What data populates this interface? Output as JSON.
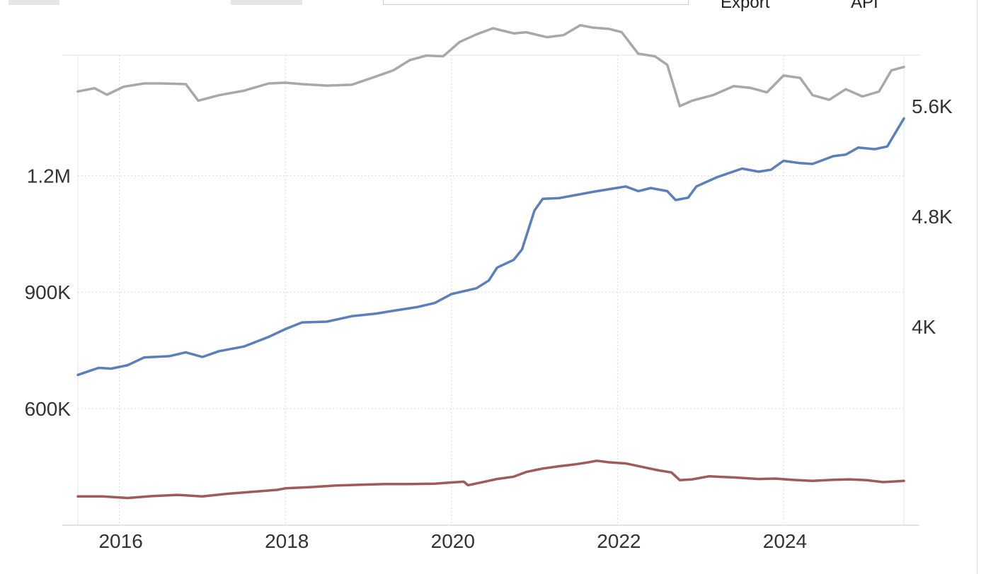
{
  "toolbar": {
    "export_label": "Export",
    "api_label": "API"
  },
  "chart_data": {
    "type": "line",
    "xlim": [
      2015.5,
      2025.45
    ],
    "x_ticks": [
      {
        "value": 2016,
        "label": "2016"
      },
      {
        "value": 2018,
        "label": "2018"
      },
      {
        "value": 2020,
        "label": "2020"
      },
      {
        "value": 2022,
        "label": "2022"
      },
      {
        "value": 2024,
        "label": "2024"
      }
    ],
    "y_left": {
      "range": [
        300000,
        1510000
      ],
      "ticks": [
        {
          "value": 600000,
          "label": "600K"
        },
        {
          "value": 900000,
          "label": "900K"
        },
        {
          "value": 1200000,
          "label": "1.2M"
        }
      ]
    },
    "y_right": {
      "range": [
        2560,
        5970
      ],
      "ticks": [
        {
          "value": 4000,
          "label": "4K"
        },
        {
          "value": 4800,
          "label": "4.8K"
        },
        {
          "value": 5600,
          "label": "5.6K"
        }
      ]
    },
    "grid": true,
    "legend": "none",
    "series": [
      {
        "axis": "left",
        "color": "#5b7fbb",
        "points": [
          [
            2015.5,
            687000
          ],
          [
            2015.75,
            705000
          ],
          [
            2015.9,
            703000
          ],
          [
            2016.1,
            712000
          ],
          [
            2016.3,
            732000
          ],
          [
            2016.6,
            735000
          ],
          [
            2016.8,
            745000
          ],
          [
            2017.0,
            733000
          ],
          [
            2017.2,
            748000
          ],
          [
            2017.5,
            760000
          ],
          [
            2017.8,
            785000
          ],
          [
            2018.0,
            805000
          ],
          [
            2018.2,
            822000
          ],
          [
            2018.5,
            824000
          ],
          [
            2018.8,
            838000
          ],
          [
            2019.1,
            845000
          ],
          [
            2019.3,
            852000
          ],
          [
            2019.6,
            862000
          ],
          [
            2019.8,
            872000
          ],
          [
            2020.0,
            895000
          ],
          [
            2020.3,
            910000
          ],
          [
            2020.45,
            930000
          ],
          [
            2020.55,
            963000
          ],
          [
            2020.75,
            983000
          ],
          [
            2020.85,
            1010000
          ],
          [
            2021.0,
            1110000
          ],
          [
            2021.1,
            1140000
          ],
          [
            2021.3,
            1142000
          ],
          [
            2021.5,
            1150000
          ],
          [
            2021.7,
            1158000
          ],
          [
            2021.9,
            1165000
          ],
          [
            2022.1,
            1172000
          ],
          [
            2022.25,
            1160000
          ],
          [
            2022.4,
            1168000
          ],
          [
            2022.6,
            1160000
          ],
          [
            2022.7,
            1137000
          ],
          [
            2022.85,
            1143000
          ],
          [
            2022.95,
            1172000
          ],
          [
            2023.2,
            1196000
          ],
          [
            2023.5,
            1218000
          ],
          [
            2023.7,
            1210000
          ],
          [
            2023.85,
            1215000
          ],
          [
            2024.0,
            1238000
          ],
          [
            2024.2,
            1232000
          ],
          [
            2024.35,
            1230000
          ],
          [
            2024.6,
            1250000
          ],
          [
            2024.75,
            1254000
          ],
          [
            2024.9,
            1272000
          ],
          [
            2025.1,
            1268000
          ],
          [
            2025.25,
            1275000
          ],
          [
            2025.45,
            1347000
          ]
        ]
      },
      {
        "axis": "right",
        "color": "#a8a8a8",
        "points": [
          [
            2015.5,
            5707
          ],
          [
            2015.7,
            5730
          ],
          [
            2015.85,
            5683
          ],
          [
            2016.05,
            5741
          ],
          [
            2016.3,
            5765
          ],
          [
            2016.5,
            5765
          ],
          [
            2016.8,
            5760
          ],
          [
            2016.95,
            5640
          ],
          [
            2017.2,
            5679
          ],
          [
            2017.5,
            5712
          ],
          [
            2017.8,
            5765
          ],
          [
            2018.0,
            5770
          ],
          [
            2018.2,
            5760
          ],
          [
            2018.5,
            5749
          ],
          [
            2018.8,
            5755
          ],
          [
            2019.1,
            5817
          ],
          [
            2019.3,
            5860
          ],
          [
            2019.5,
            5934
          ],
          [
            2019.7,
            5967
          ],
          [
            2019.9,
            5962
          ],
          [
            2020.1,
            6066
          ],
          [
            2020.3,
            6120
          ],
          [
            2020.5,
            6165
          ],
          [
            2020.75,
            6128
          ],
          [
            2020.9,
            6136
          ],
          [
            2021.15,
            6100
          ],
          [
            2021.35,
            6115
          ],
          [
            2021.55,
            6187
          ],
          [
            2021.7,
            6170
          ],
          [
            2021.9,
            6160
          ],
          [
            2022.05,
            6137
          ],
          [
            2022.25,
            5980
          ],
          [
            2022.45,
            5962
          ],
          [
            2022.6,
            5900
          ],
          [
            2022.75,
            5600
          ],
          [
            2022.9,
            5640
          ],
          [
            2023.15,
            5680
          ],
          [
            2023.4,
            5745
          ],
          [
            2023.6,
            5733
          ],
          [
            2023.8,
            5700
          ],
          [
            2024.0,
            5822
          ],
          [
            2024.2,
            5805
          ],
          [
            2024.35,
            5680
          ],
          [
            2024.55,
            5646
          ],
          [
            2024.75,
            5723
          ],
          [
            2024.95,
            5670
          ],
          [
            2025.15,
            5706
          ],
          [
            2025.3,
            5860
          ],
          [
            2025.45,
            5884
          ]
        ]
      },
      {
        "axis": "left",
        "color": "#a05a5a",
        "points": [
          [
            2015.5,
            374000
          ],
          [
            2015.8,
            374000
          ],
          [
            2016.1,
            370000
          ],
          [
            2016.4,
            375000
          ],
          [
            2016.7,
            378000
          ],
          [
            2017.0,
            374000
          ],
          [
            2017.3,
            381000
          ],
          [
            2017.6,
            386000
          ],
          [
            2017.9,
            391000
          ],
          [
            2018.0,
            395000
          ],
          [
            2018.3,
            398000
          ],
          [
            2018.6,
            402000
          ],
          [
            2018.9,
            404000
          ],
          [
            2019.2,
            406000
          ],
          [
            2019.5,
            406000
          ],
          [
            2019.8,
            407000
          ],
          [
            2020.0,
            410000
          ],
          [
            2020.15,
            412000
          ],
          [
            2020.2,
            403000
          ],
          [
            2020.4,
            412000
          ],
          [
            2020.55,
            419000
          ],
          [
            2020.75,
            425000
          ],
          [
            2020.9,
            437000
          ],
          [
            2021.1,
            446000
          ],
          [
            2021.3,
            452000
          ],
          [
            2021.5,
            457000
          ],
          [
            2021.65,
            462000
          ],
          [
            2021.75,
            466000
          ],
          [
            2021.9,
            462000
          ],
          [
            2022.1,
            459000
          ],
          [
            2022.3,
            450000
          ],
          [
            2022.5,
            441000
          ],
          [
            2022.65,
            436000
          ],
          [
            2022.75,
            416000
          ],
          [
            2022.9,
            418000
          ],
          [
            2023.1,
            426000
          ],
          [
            2023.4,
            423000
          ],
          [
            2023.7,
            419000
          ],
          [
            2023.9,
            420000
          ],
          [
            2024.1,
            417000
          ],
          [
            2024.35,
            414000
          ],
          [
            2024.6,
            417000
          ],
          [
            2024.8,
            418000
          ],
          [
            2025.0,
            416000
          ],
          [
            2025.2,
            411000
          ],
          [
            2025.45,
            414000
          ]
        ]
      }
    ]
  }
}
